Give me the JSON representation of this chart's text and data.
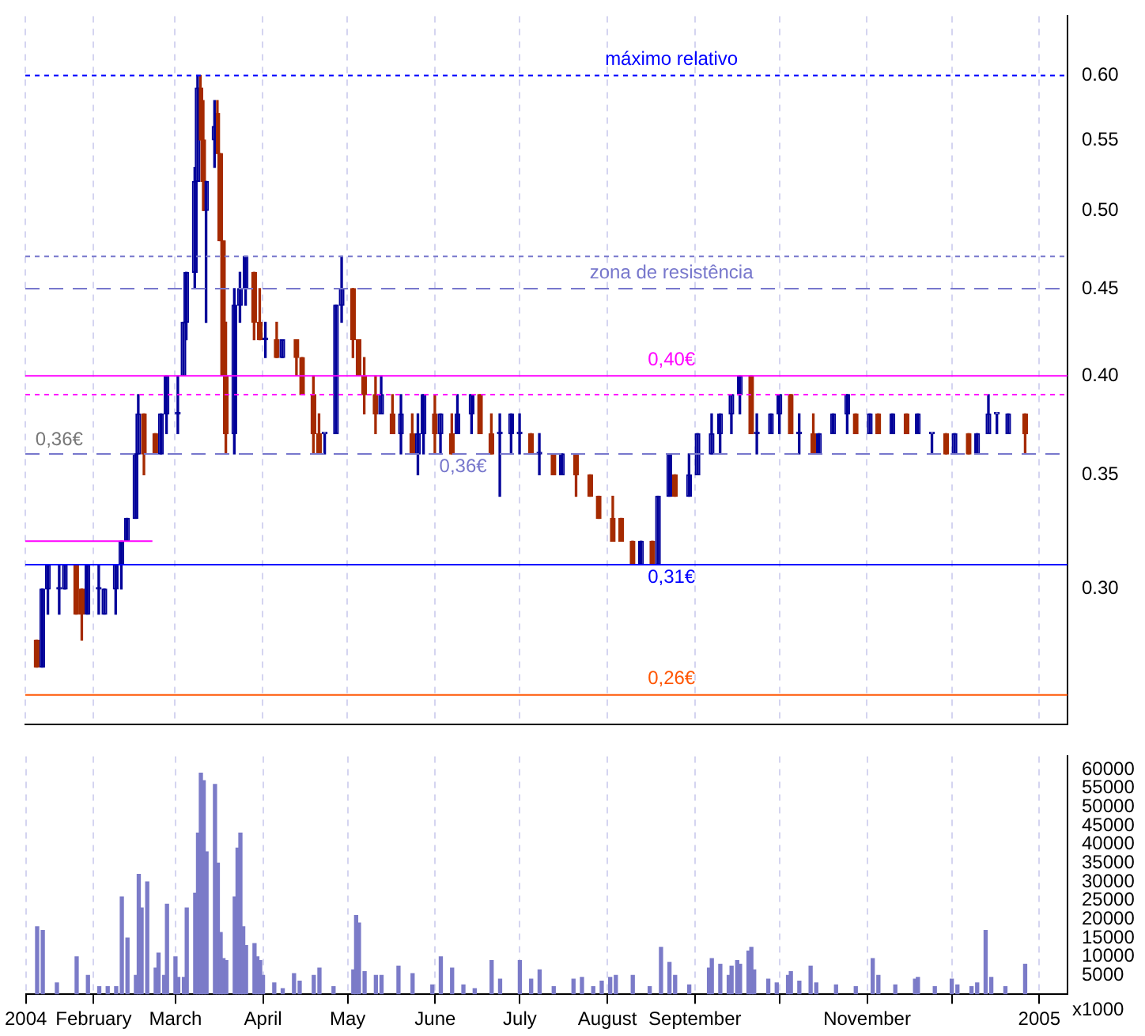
{
  "chart_data": [
    {
      "type": "candlestick",
      "x": [
        "2004-01-12",
        "2004-01-14",
        "2004-01-16",
        "2004-01-20",
        "2004-01-22",
        "2004-01-26",
        "2004-01-28",
        "2004-01-30",
        "2004-02-03",
        "2004-02-05",
        "2004-02-09",
        "2004-02-11",
        "2004-02-13",
        "2004-02-16",
        "2004-02-17",
        "2004-02-19",
        "2004-02-23",
        "2004-02-25",
        "2004-02-27",
        "2004-03-02",
        "2004-03-04",
        "2004-03-05",
        "2004-03-08",
        "2004-03-09",
        "2004-03-10",
        "2004-03-11",
        "2004-03-12",
        "2004-03-15",
        "2004-03-16",
        "2004-03-17",
        "2004-03-18",
        "2004-03-19",
        "2004-03-22",
        "2004-03-24",
        "2004-03-26",
        "2004-03-29",
        "2004-03-31",
        "2004-04-02",
        "2004-04-06",
        "2004-04-08",
        "2004-04-13",
        "2004-04-15",
        "2004-04-19",
        "2004-04-21",
        "2004-04-23",
        "2004-04-27",
        "2004-04-29",
        "2004-05-03",
        "2004-05-05",
        "2004-05-07",
        "2004-05-11",
        "2004-05-13",
        "2004-05-17",
        "2004-05-20",
        "2004-05-24",
        "2004-05-26",
        "2004-05-28",
        "2004-06-01",
        "2004-06-03",
        "2004-06-07",
        "2004-06-09",
        "2004-06-14",
        "2004-06-17",
        "2004-06-21",
        "2004-06-24",
        "2004-06-28",
        "2004-07-01",
        "2004-07-05",
        "2004-07-08",
        "2004-07-13",
        "2004-07-16",
        "2004-07-21",
        "2004-07-26",
        "2004-07-29",
        "2004-08-03",
        "2004-08-06",
        "2004-08-10",
        "2004-08-13",
        "2004-08-17",
        "2004-08-19",
        "2004-08-23",
        "2004-08-25",
        "2004-08-30",
        "2004-09-02",
        "2004-09-07",
        "2004-09-10",
        "2004-09-14",
        "2004-09-17",
        "2004-09-21",
        "2004-09-23",
        "2004-09-28",
        "2004-10-01",
        "2004-10-05",
        "2004-10-08",
        "2004-10-13",
        "2004-10-15",
        "2004-10-20",
        "2004-10-25",
        "2004-10-28",
        "2004-11-02",
        "2004-11-05",
        "2004-11-10",
        "2004-11-15",
        "2004-11-19",
        "2004-11-24",
        "2004-11-29",
        "2004-12-02",
        "2004-12-07",
        "2004-12-10",
        "2004-12-14",
        "2004-12-17",
        "2004-12-21",
        "2004-12-27"
      ],
      "ohlc": [
        [
          0.28,
          0.28,
          0.27,
          0.27
        ],
        [
          0.27,
          0.3,
          0.27,
          0.3
        ],
        [
          0.3,
          0.31,
          0.29,
          0.31
        ],
        [
          0.3,
          0.31,
          0.29,
          0.3
        ],
        [
          0.3,
          0.31,
          0.3,
          0.31
        ],
        [
          0.31,
          0.31,
          0.29,
          0.29
        ],
        [
          0.3,
          0.3,
          0.28,
          0.29
        ],
        [
          0.29,
          0.31,
          0.29,
          0.31
        ],
        [
          0.3,
          0.31,
          0.29,
          0.3
        ],
        [
          0.29,
          0.3,
          0.29,
          0.3
        ],
        [
          0.3,
          0.31,
          0.29,
          0.31
        ],
        [
          0.31,
          0.32,
          0.3,
          0.32
        ],
        [
          0.32,
          0.33,
          0.32,
          0.33
        ],
        [
          0.33,
          0.36,
          0.33,
          0.36
        ],
        [
          0.36,
          0.39,
          0.36,
          0.38
        ],
        [
          0.38,
          0.38,
          0.35,
          0.36
        ],
        [
          0.37,
          0.37,
          0.36,
          0.36
        ],
        [
          0.36,
          0.38,
          0.36,
          0.38
        ],
        [
          0.38,
          0.4,
          0.37,
          0.4
        ],
        [
          0.38,
          0.4,
          0.37,
          0.38
        ],
        [
          0.4,
          0.43,
          0.4,
          0.43
        ],
        [
          0.43,
          0.46,
          0.42,
          0.46
        ],
        [
          0.46,
          0.53,
          0.45,
          0.52
        ],
        [
          0.52,
          0.6,
          0.52,
          0.59
        ],
        [
          0.59,
          0.6,
          0.55,
          0.55
        ],
        [
          0.55,
          0.58,
          0.5,
          0.52
        ],
        [
          0.5,
          0.52,
          0.43,
          0.52
        ],
        [
          0.55,
          0.58,
          0.53,
          0.56
        ],
        [
          0.57,
          0.58,
          0.54,
          0.54
        ],
        [
          0.54,
          0.54,
          0.48,
          0.48
        ],
        [
          0.48,
          0.48,
          0.4,
          0.4
        ],
        [
          0.4,
          0.43,
          0.36,
          0.37
        ],
        [
          0.37,
          0.45,
          0.36,
          0.44
        ],
        [
          0.44,
          0.46,
          0.43,
          0.45
        ],
        [
          0.45,
          0.47,
          0.44,
          0.47
        ],
        [
          0.46,
          0.46,
          0.42,
          0.43
        ],
        [
          0.43,
          0.45,
          0.42,
          0.42
        ],
        [
          0.42,
          0.43,
          0.41,
          0.42
        ],
        [
          0.42,
          0.43,
          0.41,
          0.41
        ],
        [
          0.41,
          0.42,
          0.41,
          0.42
        ],
        [
          0.42,
          0.42,
          0.4,
          0.41
        ],
        [
          0.41,
          0.41,
          0.39,
          0.39
        ],
        [
          0.39,
          0.4,
          0.36,
          0.37
        ],
        [
          0.37,
          0.38,
          0.36,
          0.36
        ],
        [
          0.37,
          0.37,
          0.36,
          0.37
        ],
        [
          0.37,
          0.44,
          0.37,
          0.44
        ],
        [
          0.44,
          0.47,
          0.43,
          0.45
        ],
        [
          0.45,
          0.45,
          0.41,
          0.42
        ],
        [
          0.42,
          0.42,
          0.4,
          0.4
        ],
        [
          0.4,
          0.41,
          0.38,
          0.39
        ],
        [
          0.39,
          0.4,
          0.37,
          0.38
        ],
        [
          0.38,
          0.4,
          0.38,
          0.39
        ],
        [
          0.38,
          0.39,
          0.37,
          0.37
        ],
        [
          0.37,
          0.39,
          0.36,
          0.38
        ],
        [
          0.37,
          0.38,
          0.36,
          0.36
        ],
        [
          0.36,
          0.38,
          0.35,
          0.37
        ],
        [
          0.37,
          0.39,
          0.36,
          0.39
        ],
        [
          0.38,
          0.39,
          0.36,
          0.37
        ],
        [
          0.37,
          0.38,
          0.36,
          0.38
        ],
        [
          0.37,
          0.38,
          0.36,
          0.36
        ],
        [
          0.37,
          0.39,
          0.37,
          0.38
        ],
        [
          0.38,
          0.39,
          0.37,
          0.39
        ],
        [
          0.39,
          0.39,
          0.37,
          0.37
        ],
        [
          0.37,
          0.38,
          0.36,
          0.36
        ],
        [
          0.37,
          0.38,
          0.34,
          0.37
        ],
        [
          0.37,
          0.38,
          0.36,
          0.38
        ],
        [
          0.37,
          0.38,
          0.36,
          0.37
        ],
        [
          0.37,
          0.37,
          0.36,
          0.36
        ],
        [
          0.36,
          0.37,
          0.35,
          0.36
        ],
        [
          0.36,
          0.36,
          0.35,
          0.35
        ],
        [
          0.35,
          0.36,
          0.35,
          0.36
        ],
        [
          0.36,
          0.36,
          0.34,
          0.35
        ],
        [
          0.35,
          0.35,
          0.34,
          0.34
        ],
        [
          0.34,
          0.34,
          0.33,
          0.33
        ],
        [
          0.33,
          0.34,
          0.32,
          0.32
        ],
        [
          0.33,
          0.33,
          0.32,
          0.32
        ],
        [
          0.32,
          0.32,
          0.31,
          0.31
        ],
        [
          0.31,
          0.32,
          0.31,
          0.32
        ],
        [
          0.32,
          0.32,
          0.31,
          0.31
        ],
        [
          0.31,
          0.34,
          0.31,
          0.34
        ],
        [
          0.34,
          0.36,
          0.34,
          0.36
        ],
        [
          0.35,
          0.35,
          0.34,
          0.34
        ],
        [
          0.34,
          0.36,
          0.34,
          0.35
        ],
        [
          0.35,
          0.37,
          0.35,
          0.37
        ],
        [
          0.36,
          0.38,
          0.36,
          0.37
        ],
        [
          0.37,
          0.38,
          0.36,
          0.38
        ],
        [
          0.38,
          0.39,
          0.37,
          0.39
        ],
        [
          0.39,
          0.4,
          0.38,
          0.4
        ],
        [
          0.4,
          0.4,
          0.37,
          0.37
        ],
        [
          0.37,
          0.38,
          0.36,
          0.37
        ],
        [
          0.37,
          0.38,
          0.37,
          0.38
        ],
        [
          0.38,
          0.39,
          0.37,
          0.39
        ],
        [
          0.39,
          0.39,
          0.37,
          0.37
        ],
        [
          0.37,
          0.38,
          0.36,
          0.37
        ],
        [
          0.37,
          0.38,
          0.36,
          0.36
        ],
        [
          0.36,
          0.37,
          0.36,
          0.37
        ],
        [
          0.37,
          0.38,
          0.37,
          0.38
        ],
        [
          0.38,
          0.39,
          0.37,
          0.39
        ],
        [
          0.38,
          0.38,
          0.37,
          0.37
        ],
        [
          0.37,
          0.38,
          0.37,
          0.38
        ],
        [
          0.38,
          0.38,
          0.37,
          0.37
        ],
        [
          0.37,
          0.38,
          0.37,
          0.38
        ],
        [
          0.38,
          0.38,
          0.37,
          0.37
        ],
        [
          0.37,
          0.38,
          0.37,
          0.38
        ],
        [
          0.37,
          0.37,
          0.36,
          0.37
        ],
        [
          0.37,
          0.37,
          0.36,
          0.36
        ],
        [
          0.36,
          0.37,
          0.36,
          0.37
        ],
        [
          0.37,
          0.37,
          0.36,
          0.36
        ],
        [
          0.36,
          0.37,
          0.36,
          0.37
        ],
        [
          0.37,
          0.39,
          0.37,
          0.38
        ],
        [
          0.38,
          0.38,
          0.37,
          0.38
        ],
        [
          0.37,
          0.38,
          0.37,
          0.38
        ],
        [
          0.38,
          0.38,
          0.36,
          0.37
        ]
      ],
      "series": [
        {
          "type": "line",
          "x": [
            "2004-01-08",
            "2004-02-22"
          ],
          "values": [
            0.32,
            0.32
          ],
          "color": "#ff00ff"
        }
      ],
      "xlim": [
        "2004-01-08",
        "2005-01-11"
      ],
      "xticks": [
        {
          "value": "2004-01-08",
          "label": null
        },
        {
          "value": "2004-02-01",
          "label": null
        },
        {
          "value": "2004-03-01",
          "label": null
        },
        {
          "value": "2004-04-01",
          "label": null
        },
        {
          "value": "2004-05-01",
          "label": null
        },
        {
          "value": "2004-06-01",
          "label": null
        },
        {
          "value": "2004-07-01",
          "label": null
        },
        {
          "value": "2004-08-01",
          "label": null
        },
        {
          "value": "2004-09-01",
          "label": null
        },
        {
          "value": "2004-10-01",
          "label": null
        },
        {
          "value": "2004-11-01",
          "label": null
        },
        {
          "value": "2004-12-01",
          "label": null
        },
        {
          "value": "2005-01-01",
          "label": null
        }
      ],
      "ylim": [
        0.25,
        0.65
      ],
      "yticks": [
        {
          "value": 0.3,
          "label": "0.30"
        },
        {
          "value": 0.35,
          "label": "0.35"
        },
        {
          "value": 0.4,
          "label": "0.40"
        },
        {
          "value": 0.45,
          "label": "0.45"
        },
        {
          "value": 0.5,
          "label": "0.50"
        },
        {
          "value": 0.55,
          "label": "0.55"
        },
        {
          "value": 0.6,
          "label": "0.60"
        }
      ],
      "log": "y",
      "grid": "x",
      "tick_labels": "y",
      "ref_lines": [
        {
          "axis": "y",
          "value": 0.6,
          "label": "máximo relativo",
          "color": "#0000ff",
          "line_style": "dotted"
        },
        {
          "axis": "y",
          "value": 0.47,
          "color": "#7777cc",
          "line_style": "dotted"
        },
        {
          "axis": "y",
          "value": 0.45,
          "label": "zona de resistência",
          "color": "#7777cc",
          "line_style": "dashed"
        },
        {
          "axis": "y",
          "value": 0.4,
          "label": "0,40€",
          "color": "#ff00ff",
          "line_style": "solid"
        },
        {
          "axis": "y",
          "value": 0.39,
          "color": "#ff00ff",
          "line_style": "dotted"
        },
        {
          "axis": "y",
          "value": 0.36,
          "label": "0,36€",
          "color": "#7777cc",
          "line_style": "dashed"
        },
        {
          "axis": "y",
          "value": 0.31,
          "label": "0,31€",
          "color": "#0000ff",
          "line_style": "solid"
        },
        {
          "axis": "y",
          "value": 0.26,
          "label": "0,26€",
          "color": "#ff5500",
          "line_style": "solid"
        }
      ],
      "annotations": [
        {
          "text": "0,36€",
          "x": "2004-01-20",
          "y": 0.36
        }
      ]
    },
    {
      "type": "bar",
      "x": [
        "2004-01-12",
        "2004-01-14",
        "2004-01-19",
        "2004-01-26",
        "2004-01-30",
        "2004-02-03",
        "2004-02-06",
        "2004-02-09",
        "2004-02-11",
        "2004-02-13",
        "2004-02-16",
        "2004-02-17",
        "2004-02-18",
        "2004-02-20",
        "2004-02-23",
        "2004-02-24",
        "2004-02-26",
        "2004-02-27",
        "2004-03-01",
        "2004-03-02",
        "2004-03-04",
        "2004-03-05",
        "2004-03-08",
        "2004-03-09",
        "2004-03-10",
        "2004-03-11",
        "2004-03-12",
        "2004-03-15",
        "2004-03-16",
        "2004-03-17",
        "2004-03-18",
        "2004-03-19",
        "2004-03-22",
        "2004-03-23",
        "2004-03-24",
        "2004-03-25",
        "2004-03-26",
        "2004-03-29",
        "2004-03-30",
        "2004-03-31",
        "2004-04-01",
        "2004-04-05",
        "2004-04-08",
        "2004-04-12",
        "2004-04-14",
        "2004-04-19",
        "2004-04-21",
        "2004-04-26",
        "2004-05-03",
        "2004-05-04",
        "2004-05-05",
        "2004-05-07",
        "2004-05-11",
        "2004-05-13",
        "2004-05-19",
        "2004-05-24",
        "2004-05-31",
        "2004-06-03",
        "2004-06-07",
        "2004-06-11",
        "2004-06-15",
        "2004-06-21",
        "2004-06-24",
        "2004-07-01",
        "2004-07-05",
        "2004-07-08",
        "2004-07-13",
        "2004-07-20",
        "2004-07-23",
        "2004-07-27",
        "2004-07-30",
        "2004-08-02",
        "2004-08-04",
        "2004-08-10",
        "2004-08-16",
        "2004-08-20",
        "2004-08-23",
        "2004-08-25",
        "2004-08-30",
        "2004-09-06",
        "2004-09-07",
        "2004-09-10",
        "2004-09-13",
        "2004-09-14",
        "2004-09-16",
        "2004-09-17",
        "2004-09-20",
        "2004-09-21",
        "2004-09-22",
        "2004-09-27",
        "2004-09-30",
        "2004-10-04",
        "2004-10-05",
        "2004-10-08",
        "2004-10-12",
        "2004-10-14",
        "2004-10-21",
        "2004-10-28",
        "2004-11-03",
        "2004-11-05",
        "2004-11-11",
        "2004-11-18",
        "2004-11-19",
        "2004-11-25",
        "2004-12-01",
        "2004-12-03",
        "2004-12-08",
        "2004-12-10",
        "2004-12-13",
        "2004-12-15",
        "2004-12-20",
        "2004-12-27"
      ],
      "values": [
        18000,
        17000,
        3000,
        10000,
        5000,
        2000,
        2000,
        2000,
        26000,
        15000,
        5000,
        32000,
        23000,
        30000,
        7000,
        11000,
        5000,
        24000,
        10000,
        4500,
        4500,
        23000,
        27000,
        43000,
        59000,
        57000,
        38000,
        56000,
        35000,
        16500,
        9500,
        9000,
        26000,
        39000,
        43000,
        18000,
        13000,
        13500,
        10000,
        9000,
        5000,
        3000,
        1500,
        5500,
        3500,
        5000,
        7000,
        2000,
        6500,
        21000,
        19000,
        6000,
        5000,
        5000,
        7500,
        5500,
        2500,
        10000,
        7000,
        2500,
        1500,
        9000,
        4000,
        9000,
        4000,
        6500,
        2000,
        4000,
        4500,
        2000,
        3500,
        4500,
        5000,
        5000,
        2000,
        12500,
        8500,
        5000,
        2500,
        7000,
        9500,
        8000,
        5000,
        7500,
        9000,
        8000,
        11500,
        12500,
        6500,
        4000,
        3000,
        5000,
        6000,
        3500,
        7500,
        3000,
        2500,
        2000,
        9500,
        5000,
        2500,
        4000,
        4500,
        2000,
        4000,
        2500,
        2000,
        3000,
        17000,
        4500,
        2000,
        8000
      ],
      "color": "#7b7bc8",
      "xlim": [
        "2004-01-08",
        "2005-01-11"
      ],
      "xticks": [
        {
          "value": "2004-01-08",
          "label": "2004"
        },
        {
          "value": "2004-02-01",
          "label": "February"
        },
        {
          "value": "2004-03-01",
          "label": "March"
        },
        {
          "value": "2004-04-01",
          "label": "April"
        },
        {
          "value": "2004-05-01",
          "label": "May"
        },
        {
          "value": "2004-06-01",
          "label": "June"
        },
        {
          "value": "2004-07-01",
          "label": "July"
        },
        {
          "value": "2004-08-01",
          "label": "August"
        },
        {
          "value": "2004-09-01",
          "label": "September"
        },
        {
          "value": "2004-10-01",
          "label": null
        },
        {
          "value": "2004-11-01",
          "label": "November"
        },
        {
          "value": "2004-12-01",
          "label": null
        },
        {
          "value": "2005-01-01",
          "label": "2005"
        }
      ],
      "ylim": [
        0,
        63500
      ],
      "yticks": [
        5000,
        10000,
        15000,
        20000,
        25000,
        30000,
        35000,
        40000,
        45000,
        50000,
        55000,
        60000
      ],
      "grid": "x",
      "annotations": [
        "x1000"
      ]
    }
  ]
}
